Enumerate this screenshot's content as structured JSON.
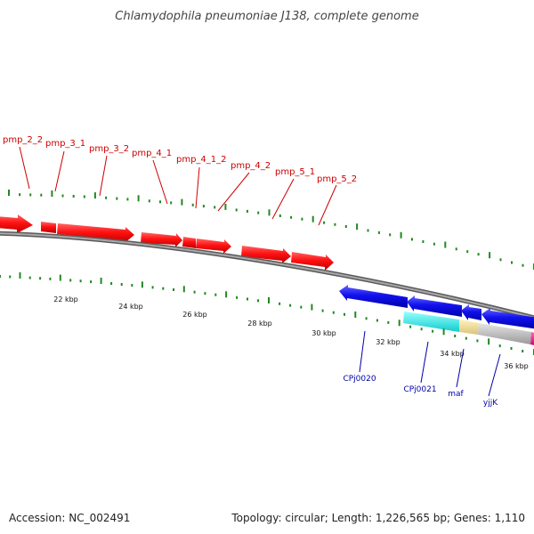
{
  "title": "Chlamydophila pneumoniae J138, complete genome",
  "footer": {
    "accession": "Accession: NC_002491",
    "summary": "Topology: circular; Length: 1,226,565 bp; Genes: 1,110"
  },
  "scale_labels": [
    "22 kbp",
    "24 kbp",
    "26 kbp",
    "28 kbp",
    "30 kbp",
    "32 kbp",
    "34 kbp",
    "36 kbp"
  ],
  "forward_gene_labels": [
    "pmp_2_2",
    "pmp_3_1",
    "pmp_3_2",
    "pmp_4_1",
    "pmp_4_1_2",
    "pmp_4_2",
    "pmp_5_1",
    "pmp_5_2"
  ],
  "reverse_gene_labels": [
    "CPj0020",
    "CPj0021",
    "maf",
    "yjjK"
  ],
  "colors": {
    "forward_gene": "#ff1111",
    "reverse_gene": "#1111ee",
    "backbone": "#8c8c8c",
    "tick": "#228822",
    "accent_cyan": "#22eeee",
    "accent_yellow": "#eedd99",
    "accent_gray": "#bbbbbb",
    "accent_magenta": "#ee1188"
  }
}
